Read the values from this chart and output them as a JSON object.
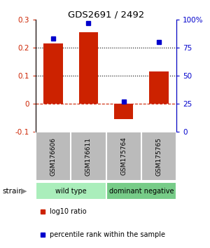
{
  "title": "GDS2691 / 2492",
  "samples": [
    "GSM176606",
    "GSM176611",
    "GSM175764",
    "GSM175765"
  ],
  "log10_ratio": [
    0.215,
    0.255,
    -0.055,
    0.115
  ],
  "percentile_rank": [
    83,
    97,
    27,
    80
  ],
  "bar_color": "#cc2200",
  "dot_color": "#0000cc",
  "ylim_left": [
    -0.1,
    0.3
  ],
  "ylim_right": [
    0,
    100
  ],
  "yticks_left": [
    -0.1,
    0.0,
    0.1,
    0.2,
    0.3
  ],
  "yticks_right": [
    0,
    25,
    50,
    75,
    100
  ],
  "ytick_labels_right": [
    "0",
    "25",
    "50",
    "75",
    "100%"
  ],
  "dotted_lines": [
    0.1,
    0.2
  ],
  "zero_line": 0.0,
  "groups": [
    {
      "label": "wild type",
      "indices": [
        0,
        1
      ],
      "color": "#aaeebb"
    },
    {
      "label": "dominant negative",
      "indices": [
        2,
        3
      ],
      "color": "#77cc88"
    }
  ],
  "strain_label": "strain",
  "legend_items": [
    {
      "color": "#cc2200",
      "label": "log10 ratio"
    },
    {
      "color": "#0000cc",
      "label": "percentile rank within the sample"
    }
  ],
  "background_color": "#ffffff",
  "label_area_color": "#bbbbbb",
  "bar_width": 0.55
}
